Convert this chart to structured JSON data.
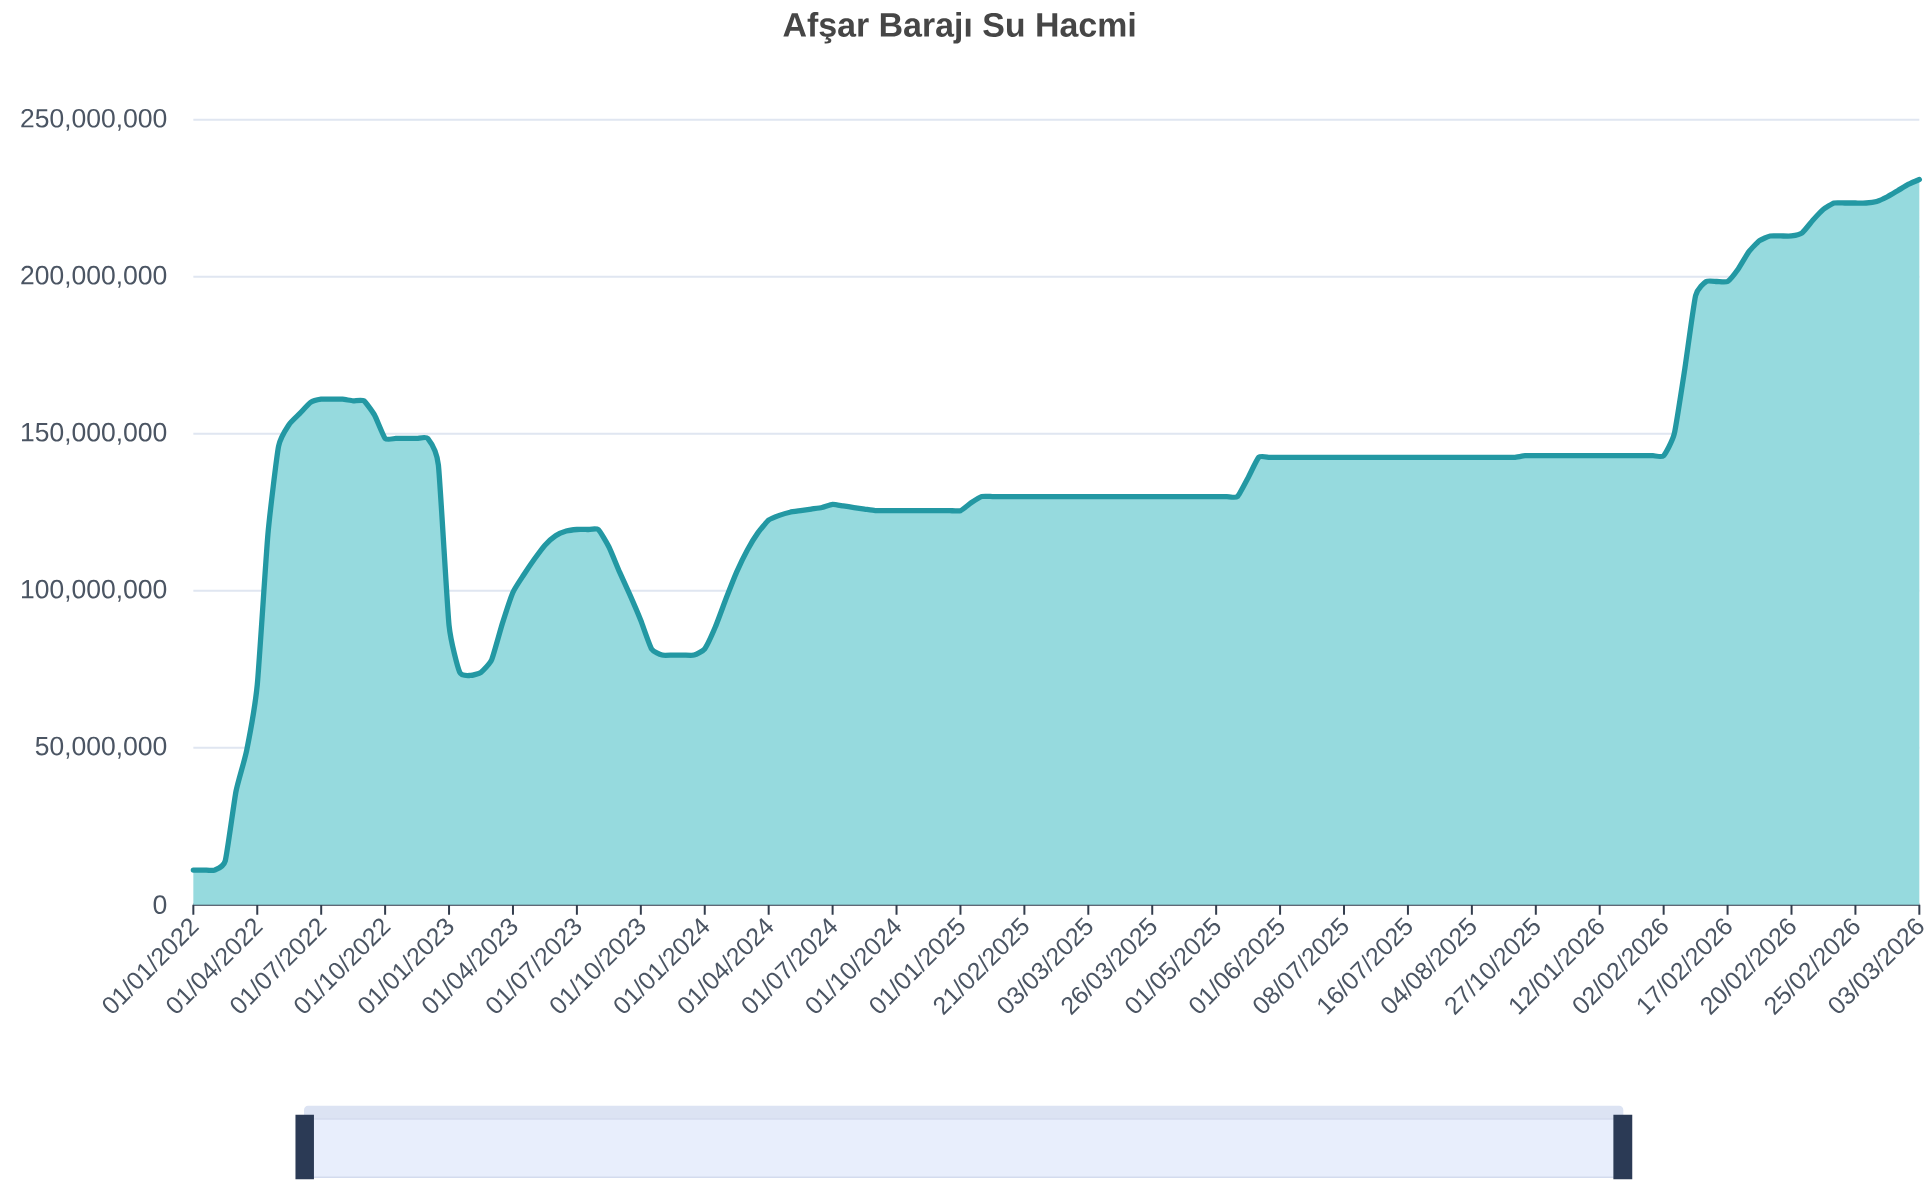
{
  "chart_data": {
    "type": "area",
    "title": "Afşar Barajı Su Hacmi",
    "categories": [
      "01/01/2022",
      null,
      null,
      null,
      null,
      null,
      "01/04/2022",
      null,
      null,
      null,
      null,
      null,
      "01/07/2022",
      null,
      null,
      null,
      null,
      null,
      "01/10/2022",
      null,
      null,
      null,
      null,
      null,
      "01/01/2023",
      null,
      null,
      null,
      null,
      null,
      "01/04/2023",
      null,
      null,
      null,
      null,
      null,
      "01/07/2023",
      null,
      null,
      null,
      null,
      null,
      "01/10/2023",
      null,
      null,
      null,
      null,
      null,
      "01/01/2024",
      null,
      null,
      null,
      null,
      null,
      "01/04/2024",
      null,
      null,
      null,
      null,
      null,
      "01/07/2024",
      null,
      null,
      null,
      null,
      null,
      "01/10/2024",
      null,
      null,
      null,
      null,
      null,
      "01/01/2025",
      null,
      null,
      null,
      null,
      null,
      "21/02/2025",
      null,
      null,
      null,
      null,
      null,
      "03/03/2025",
      null,
      null,
      null,
      null,
      null,
      "26/03/2025",
      null,
      null,
      null,
      null,
      null,
      "01/05/2025",
      null,
      null,
      null,
      null,
      null,
      "01/06/2025",
      null,
      null,
      null,
      null,
      null,
      "08/07/2025",
      null,
      null,
      null,
      null,
      null,
      "16/07/2025",
      null,
      null,
      null,
      null,
      null,
      "04/08/2025",
      null,
      null,
      null,
      null,
      null,
      "27/10/2025",
      null,
      null,
      null,
      null,
      null,
      "12/01/2026",
      null,
      null,
      null,
      null,
      null,
      "02/02/2026",
      null,
      null,
      null,
      null,
      null,
      "17/02/2026",
      null,
      null,
      null,
      null,
      null,
      "20/02/2026",
      null,
      null,
      null,
      null,
      null,
      "25/02/2026",
      null,
      null,
      null,
      null,
      null,
      "03/03/2026"
    ],
    "values": [
      11000000,
      11000000,
      11000000,
      14000000,
      36000000,
      49000000,
      70000000,
      118000000,
      146000000,
      153000000,
      156500000,
      160000000,
      161000000,
      161000000,
      161000000,
      160500000,
      160500000,
      156000000,
      148500000,
      148500000,
      148500000,
      148500000,
      148500000,
      140000000,
      89000000,
      74000000,
      73000000,
      74000000,
      78000000,
      89500000,
      99500000,
      105000000,
      110000000,
      114500000,
      117500000,
      119000000,
      119500000,
      119500000,
      119500000,
      114000000,
      106000000,
      98500000,
      90500000,
      81500000,
      79500000,
      79500000,
      79500000,
      79500000,
      81500000,
      88500000,
      97500000,
      106000000,
      113000000,
      118500000,
      122500000,
      124000000,
      125000000,
      125500000,
      126000000,
      126500000,
      127500000,
      127000000,
      126500000,
      126000000,
      125500000,
      125500000,
      125500000,
      125500000,
      125500000,
      125500000,
      125500000,
      125500000,
      125500000,
      128000000,
      130000000,
      130000000,
      130000000,
      130000000,
      130000000,
      130000000,
      130000000,
      130000000,
      130000000,
      130000000,
      130000000,
      130000000,
      130000000,
      130000000,
      130000000,
      130000000,
      130000000,
      130000000,
      130000000,
      130000000,
      130000000,
      130000000,
      130000000,
      130000000,
      130000000,
      136000000,
      142500000,
      142500000,
      142500000,
      142500000,
      142500000,
      142500000,
      142500000,
      142500000,
      142500000,
      142500000,
      142500000,
      142500000,
      142500000,
      142500000,
      142500000,
      142500000,
      142500000,
      142500000,
      142500000,
      142500000,
      142500000,
      142500000,
      142500000,
      142500000,
      142500000,
      143000000,
      143000000,
      143000000,
      143000000,
      143000000,
      143000000,
      143000000,
      143000000,
      143000000,
      143000000,
      143000000,
      143000000,
      143000000,
      143000000,
      150000000,
      171000000,
      194000000,
      198500000,
      198500000,
      198500000,
      202500000,
      208000000,
      211500000,
      213000000,
      213000000,
      213000000,
      214000000,
      218000000,
      221500000,
      223500000,
      223500000,
      223500000,
      223500000,
      224000000,
      225500000,
      227500000,
      229500000,
      231000000
    ],
    "color": "#2398a3",
    "ylim": [
      0,
      250000000
    ],
    "yticks": [
      0,
      {
        "value": 50000000,
        "label": "50,000,000"
      },
      {
        "value": 100000000,
        "label": "100,000,000"
      },
      {
        "value": 150000000,
        "label": "150,000,000"
      },
      {
        "value": 200000000,
        "label": "200,000,000"
      },
      {
        "value": 250000000,
        "label": "250,000,000"
      }
    ],
    "grid": "y",
    "line_style": "solid"
  }
}
